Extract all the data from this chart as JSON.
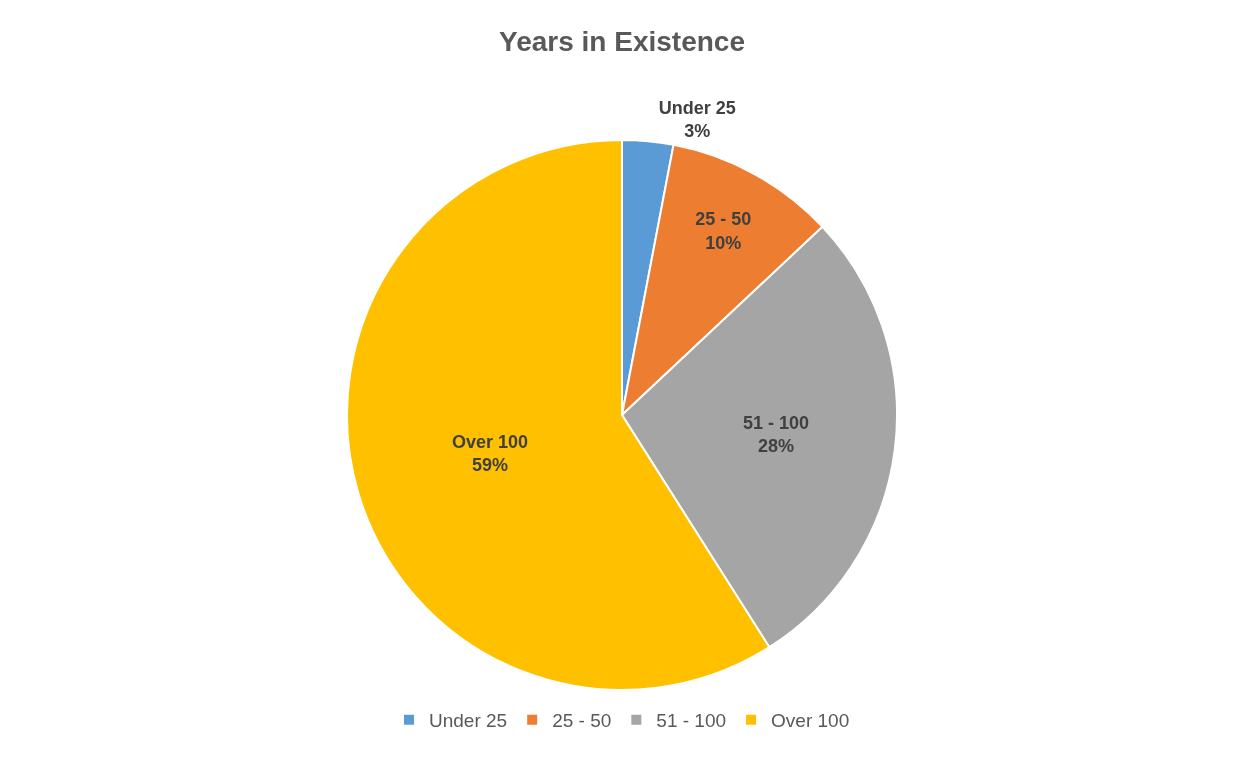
{
  "chart_data": {
    "type": "pie",
    "title": "Years in Existence",
    "categories": [
      "Under 25",
      "25 - 50",
      "51 - 100",
      "Over 100"
    ],
    "values": [
      3,
      10,
      28,
      59
    ],
    "value_labels": [
      "3%",
      "10%",
      "28%",
      "59%"
    ],
    "colors": [
      "#5b9bd5",
      "#ed7d31",
      "#a5a5a5",
      "#ffc000"
    ],
    "legend": "bottom"
  }
}
